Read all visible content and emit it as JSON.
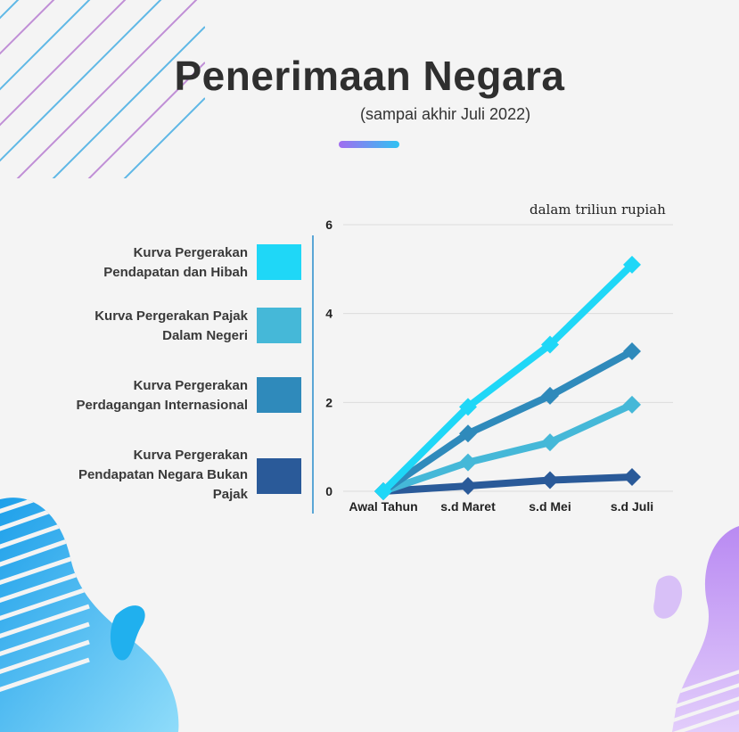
{
  "header": {
    "title": "Penerimaan Negara",
    "subtitle": "(sampai akhir Juli 2022)",
    "unit_note": "dalam triliun rupiah"
  },
  "colors": {
    "background": "#f4f4f4",
    "accent_purple": "#a16cf0",
    "accent_cyan": "#2fc2f2"
  },
  "legend": [
    {
      "label_line1": "Kurva Pergerakan",
      "label_line2": "Pendapatan dan Hibah",
      "label_line3": "",
      "color": "#1fd7f7"
    },
    {
      "label_line1": "Kurva Pergerakan Pajak",
      "label_line2": "Dalam Negeri",
      "label_line3": "",
      "color": "#45b8d8"
    },
    {
      "label_line1": "Kurva Pergerakan",
      "label_line2": "Perdagangan Internasional",
      "label_line3": "",
      "color": "#2f8abb"
    },
    {
      "label_line1": "Kurva Pergerakan",
      "label_line2": "Pendapatan Negara Bukan",
      "label_line3": "Pajak",
      "color": "#2a5a99"
    }
  ],
  "chart_data": {
    "type": "line",
    "categories": [
      "Awal Tahun",
      "s.d Maret",
      "s.d Mei",
      "s.d Juli"
    ],
    "ylim": [
      0,
      6
    ],
    "yticks": [
      0,
      2,
      4,
      6
    ],
    "grid": true,
    "marker": "diamond",
    "series": [
      {
        "name": "Kurva Pergerakan Pendapatan dan Hibah",
        "color": "#1fd7f7",
        "values": [
          0,
          1.9,
          3.3,
          5.1
        ]
      },
      {
        "name": "Kurva Pergerakan Perdagangan Internasional",
        "color": "#2f8abb",
        "values": [
          0,
          1.3,
          2.15,
          3.15
        ]
      },
      {
        "name": "Kurva Pergerakan Pajak Dalam Negeri",
        "color": "#45b8d8",
        "values": [
          0,
          0.65,
          1.1,
          1.95
        ]
      },
      {
        "name": "Kurva Pergerakan Pendapatan Negara Bukan Pajak",
        "color": "#2a5a99",
        "values": [
          0,
          0.12,
          0.25,
          0.32
        ]
      }
    ]
  }
}
